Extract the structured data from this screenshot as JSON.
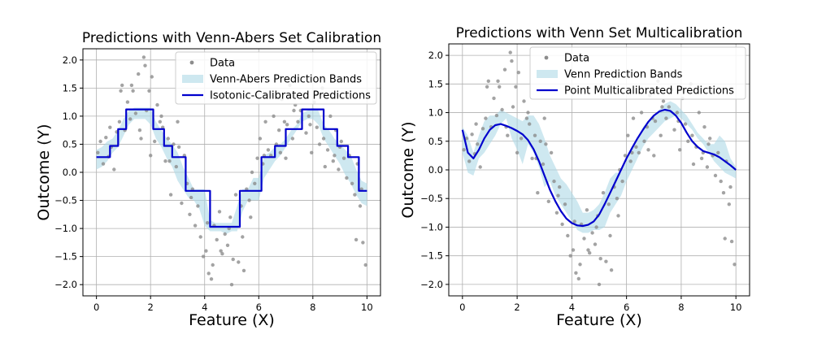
{
  "figure": {
    "background": "#ffffff"
  },
  "colors": {
    "data": "#8c8c8c",
    "band": "#add8e6",
    "line": "#0000cd",
    "grid": "#b0b0b0"
  },
  "chart_data": [
    {
      "type": "line",
      "title": "Predictions with Venn-Abers Set Calibration",
      "xlabel": "Feature (X)",
      "ylabel": "Outcome (Y)",
      "xlim": [
        -0.5,
        10.5
      ],
      "ylim": [
        -2.2,
        2.2
      ],
      "xticks": [
        0,
        2,
        4,
        6,
        8,
        10
      ],
      "yticks": [
        -2.0,
        -1.5,
        -1.0,
        -0.5,
        0.0,
        0.5,
        1.0,
        1.5,
        2.0
      ],
      "ytick_labels": [
        "−2.0",
        "−1.5",
        "−1.0",
        "−0.5",
        "0.0",
        "0.5",
        "1.0",
        "1.5",
        "2.0"
      ],
      "grid": true,
      "legend_position": "top-right",
      "legend": [
        "Data",
        "Venn-Abers Prediction Bands",
        "Isotonic-Calibrated Predictions"
      ],
      "scatter": {
        "name": "Data",
        "x": [
          0.05,
          0.15,
          0.25,
          0.35,
          0.45,
          0.55,
          0.65,
          0.75,
          0.85,
          0.95,
          1.05,
          1.15,
          1.25,
          1.35,
          1.45,
          1.55,
          1.65,
          1.75,
          1.85,
          1.95,
          2.05,
          2.15,
          2.25,
          2.35,
          2.45,
          2.55,
          2.65,
          2.75,
          2.85,
          2.95,
          3.05,
          3.15,
          3.25,
          3.35,
          3.45,
          3.55,
          3.65,
          3.75,
          3.85,
          3.95,
          4.05,
          4.15,
          4.25,
          4.35,
          4.45,
          4.55,
          4.65,
          4.75,
          4.85,
          4.95,
          5.05,
          5.15,
          5.25,
          5.35,
          5.45,
          5.55,
          5.65,
          5.75,
          5.85,
          5.95,
          6.05,
          6.15,
          6.25,
          6.35,
          6.45,
          6.55,
          6.65,
          6.75,
          6.85,
          6.95,
          7.05,
          7.15,
          7.25,
          7.35,
          7.45,
          7.55,
          7.65,
          7.75,
          7.85,
          7.95,
          8.05,
          8.15,
          8.25,
          8.35,
          8.45,
          8.55,
          8.65,
          8.75,
          8.85,
          8.95,
          9.05,
          9.15,
          9.25,
          9.35,
          9.45,
          9.55,
          9.65,
          9.75,
          9.85,
          9.95,
          0.5,
          1.3,
          1.8,
          2.0,
          2.4,
          3.0,
          3.5,
          4.1,
          4.6,
          5.0,
          5.4,
          6.2,
          6.8,
          7.3,
          7.9,
          8.4,
          9.0,
          9.6,
          0.9,
          1.6,
          2.7,
          4.3,
          4.9,
          5.7,
          7.0,
          8.8,
          9.8
        ],
        "y": [
          0.35,
          0.55,
          0.15,
          0.62,
          0.28,
          0.45,
          0.05,
          0.72,
          0.9,
          1.55,
          0.75,
          1.25,
          0.95,
          1.45,
          1.05,
          1.75,
          0.6,
          2.05,
          1.1,
          1.45,
          1.7,
          0.55,
          1.2,
          0.9,
          0.8,
          0.2,
          0.6,
          -0.4,
          0.5,
          0.1,
          0.45,
          -0.55,
          0.3,
          -0.2,
          -0.75,
          -0.3,
          -0.95,
          -0.6,
          -1.15,
          -1.5,
          -1.4,
          -1.8,
          -1.9,
          -0.95,
          -1.2,
          -0.7,
          -1.45,
          -1.1,
          -1.3,
          -0.8,
          -1.55,
          -0.4,
          -1.6,
          -0.6,
          -1.75,
          -0.3,
          -0.5,
          0.0,
          -0.2,
          0.25,
          0.6,
          0.15,
          0.9,
          0.4,
          0.3,
          1.0,
          0.5,
          0.75,
          1.3,
          0.9,
          0.85,
          1.55,
          0.6,
          1.2,
          0.9,
          1.1,
          1.4,
          0.7,
          1.0,
          0.35,
          1.25,
          0.8,
          0.5,
          1.5,
          0.1,
          0.4,
          1.0,
          0.2,
          0.75,
          0.05,
          0.55,
          0.25,
          -0.1,
          0.3,
          -0.2,
          -0.4,
          0.15,
          -0.6,
          -1.25,
          -1.65,
          0.8,
          1.55,
          1.9,
          0.3,
          1.0,
          0.9,
          -0.45,
          -0.9,
          -1.4,
          -2.0,
          -1.15,
          0.3,
          0.35,
          1.1,
          0.85,
          0.6,
          0.45,
          -1.2,
          1.45,
          0.75,
          0.2,
          -1.65,
          -1.0,
          -0.8,
          0.25,
          0.3,
          -0.3
        ]
      },
      "band": {
        "name": "Venn-Abers Prediction Bands",
        "x": [
          0,
          0.2,
          0.4,
          0.6,
          0.8,
          1.0,
          1.2,
          1.4,
          1.6,
          1.8,
          2.0,
          2.2,
          2.4,
          2.6,
          2.8,
          3.0,
          3.2,
          3.4,
          3.6,
          3.8,
          4.0,
          4.2,
          4.4,
          4.6,
          4.8,
          5.0,
          5.2,
          5.4,
          5.6,
          5.8,
          6.0,
          6.2,
          6.4,
          6.6,
          6.8,
          7.0,
          7.2,
          7.4,
          7.6,
          7.8,
          8.0,
          8.2,
          8.4,
          8.6,
          8.8,
          9.0,
          9.2,
          9.4,
          9.6,
          9.8,
          10.0
        ],
        "lower": [
          0.05,
          0.1,
          0.2,
          0.35,
          0.45,
          0.65,
          0.85,
          0.95,
          0.95,
          0.95,
          0.85,
          0.6,
          0.45,
          0.25,
          0.1,
          -0.15,
          -0.3,
          -0.45,
          -0.5,
          -0.65,
          -0.95,
          -1.05,
          -1.05,
          -1.05,
          -1.1,
          -1.05,
          -1.05,
          -0.7,
          -0.5,
          -0.5,
          -0.5,
          -0.1,
          0.05,
          0.2,
          0.3,
          0.45,
          0.6,
          0.75,
          0.9,
          0.95,
          0.95,
          0.85,
          0.6,
          0.45,
          0.3,
          0.15,
          -0.05,
          -0.2,
          -0.4,
          -0.55,
          -0.6
        ],
        "upper": [
          0.4,
          0.45,
          0.55,
          0.6,
          0.75,
          0.95,
          1.1,
          1.15,
          1.15,
          1.15,
          1.15,
          0.9,
          0.75,
          0.6,
          0.5,
          0.35,
          0.1,
          -0.1,
          -0.3,
          -0.3,
          -0.3,
          -0.85,
          -0.9,
          -0.9,
          -0.9,
          -0.9,
          -0.6,
          -0.3,
          -0.3,
          -0.1,
          -0.1,
          0.3,
          0.35,
          0.45,
          0.5,
          0.6,
          0.75,
          0.85,
          1.05,
          1.1,
          1.15,
          1.1,
          0.85,
          0.75,
          0.6,
          0.5,
          0.4,
          0.3,
          0.05,
          -0.15,
          -0.2
        ]
      },
      "line": {
        "name": "Isotonic-Calibrated Predictions",
        "step_x": [
          0,
          0.5,
          0.8,
          1.1,
          2.1,
          2.5,
          2.8,
          3.3,
          4.2,
          5.3,
          6.1,
          6.6,
          7.0,
          7.6,
          8.4,
          8.9,
          9.3,
          9.7,
          10.0
        ],
        "step_y": [
          0.27,
          0.47,
          0.77,
          1.12,
          0.77,
          0.47,
          0.27,
          -0.33,
          -0.97,
          -0.33,
          0.27,
          0.47,
          0.77,
          1.12,
          0.77,
          0.47,
          0.27,
          -0.33
        ]
      }
    },
    {
      "type": "line",
      "title": "Predictions with Venn Set Multicalibration",
      "xlabel": "Feature (X)",
      "ylabel": "Outcome (Y)",
      "xlim": [
        -0.5,
        10.5
      ],
      "ylim": [
        -2.2,
        2.2
      ],
      "xticks": [
        0,
        2,
        4,
        6,
        8,
        10
      ],
      "yticks": [
        -2.0,
        -1.5,
        -1.0,
        -0.5,
        0.0,
        0.5,
        1.0,
        1.5,
        2.0
      ],
      "ytick_labels": [
        "−2.0",
        "−1.5",
        "−1.0",
        "−0.5",
        "0.0",
        "0.5",
        "1.0",
        "1.5",
        "2.0"
      ],
      "grid": true,
      "legend_position": "top-right",
      "legend": [
        "Data",
        "Venn Prediction Bands",
        "Point Multicalibrated Predictions"
      ],
      "scatter": {
        "name": "Data",
        "x": [
          0.05,
          0.15,
          0.25,
          0.35,
          0.45,
          0.55,
          0.65,
          0.75,
          0.85,
          0.95,
          1.05,
          1.15,
          1.25,
          1.35,
          1.45,
          1.55,
          1.65,
          1.75,
          1.85,
          1.95,
          2.05,
          2.15,
          2.25,
          2.35,
          2.45,
          2.55,
          2.65,
          2.75,
          2.85,
          2.95,
          3.05,
          3.15,
          3.25,
          3.35,
          3.45,
          3.55,
          3.65,
          3.75,
          3.85,
          3.95,
          4.05,
          4.15,
          4.25,
          4.35,
          4.45,
          4.55,
          4.65,
          4.75,
          4.85,
          4.95,
          5.05,
          5.15,
          5.25,
          5.35,
          5.45,
          5.55,
          5.65,
          5.75,
          5.85,
          5.95,
          6.05,
          6.15,
          6.25,
          6.35,
          6.45,
          6.55,
          6.65,
          6.75,
          6.85,
          6.95,
          7.05,
          7.15,
          7.25,
          7.35,
          7.45,
          7.55,
          7.65,
          7.75,
          7.85,
          7.95,
          8.05,
          8.15,
          8.25,
          8.35,
          8.45,
          8.55,
          8.65,
          8.75,
          8.85,
          8.95,
          9.05,
          9.15,
          9.25,
          9.35,
          9.45,
          9.55,
          9.65,
          9.75,
          9.85,
          9.95,
          0.5,
          1.3,
          1.8,
          2.0,
          2.4,
          3.0,
          3.5,
          4.1,
          4.6,
          5.0,
          5.4,
          6.2,
          6.8,
          7.3,
          7.9,
          8.4,
          9.0,
          9.6,
          0.9,
          1.6,
          2.7,
          4.3,
          4.9,
          5.7,
          7.0,
          8.8,
          9.8
        ],
        "y": [
          0.35,
          0.55,
          0.15,
          0.62,
          0.28,
          0.45,
          0.05,
          0.72,
          0.9,
          1.55,
          0.75,
          1.25,
          0.95,
          1.45,
          1.05,
          1.75,
          0.6,
          2.05,
          1.1,
          1.45,
          1.7,
          0.55,
          1.2,
          0.9,
          0.8,
          0.2,
          0.6,
          -0.4,
          0.5,
          0.1,
          0.45,
          -0.55,
          0.3,
          -0.2,
          -0.75,
          -0.3,
          -0.95,
          -0.6,
          -1.15,
          -1.5,
          -1.4,
          -1.8,
          -1.9,
          -0.95,
          -1.2,
          -0.7,
          -1.45,
          -1.1,
          -1.3,
          -0.8,
          -1.55,
          -0.4,
          -1.6,
          -0.6,
          -1.75,
          -0.3,
          -0.5,
          0.0,
          -0.2,
          0.25,
          0.6,
          0.15,
          0.9,
          0.4,
          0.3,
          1.0,
          0.5,
          0.75,
          1.3,
          0.9,
          0.85,
          1.55,
          0.6,
          1.2,
          0.9,
          1.1,
          1.4,
          0.7,
          1.0,
          0.35,
          1.25,
          0.8,
          0.5,
          1.5,
          0.1,
          0.4,
          1.0,
          0.2,
          0.75,
          0.05,
          0.55,
          0.25,
          -0.1,
          0.3,
          -0.2,
          -0.4,
          0.15,
          -0.6,
          -1.25,
          -1.65,
          0.8,
          1.55,
          1.9,
          0.3,
          1.0,
          0.9,
          -0.45,
          -0.9,
          -1.4,
          -2.0,
          -1.15,
          0.3,
          0.35,
          1.1,
          0.85,
          0.6,
          0.45,
          -1.2,
          1.45,
          0.75,
          0.2,
          -1.65,
          -1.0,
          -0.8,
          0.25,
          0.3,
          -0.3
        ]
      },
      "band": {
        "name": "Venn Prediction Bands",
        "x": [
          0,
          0.2,
          0.4,
          0.6,
          0.8,
          1.0,
          1.2,
          1.4,
          1.6,
          1.8,
          2.0,
          2.2,
          2.4,
          2.6,
          2.8,
          3.0,
          3.2,
          3.4,
          3.6,
          3.8,
          4.0,
          4.2,
          4.4,
          4.6,
          4.8,
          5.0,
          5.2,
          5.4,
          5.6,
          5.8,
          6.0,
          6.2,
          6.4,
          6.6,
          6.8,
          7.0,
          7.2,
          7.4,
          7.6,
          7.8,
          8.0,
          8.2,
          8.4,
          8.6,
          8.8,
          9.0,
          9.2,
          9.4,
          9.6,
          9.8,
          10.0
        ],
        "lower": [
          0.3,
          -0.05,
          -0.1,
          0.2,
          0.3,
          0.45,
          0.6,
          0.8,
          0.9,
          0.55,
          0.35,
          0.1,
          0.45,
          0.3,
          0.05,
          -0.3,
          -0.2,
          -0.45,
          -0.6,
          -0.75,
          -0.9,
          -1.05,
          -1.1,
          -1.1,
          -1.05,
          -1.05,
          -1.0,
          -0.75,
          -0.6,
          -0.45,
          -0.2,
          0.0,
          0.2,
          0.4,
          0.55,
          0.65,
          0.75,
          0.85,
          0.9,
          0.95,
          0.9,
          0.8,
          0.7,
          0.55,
          0.45,
          0.3,
          0.15,
          0.05,
          -0.05,
          -0.1,
          -0.15
        ],
        "upper": [
          0.75,
          0.6,
          0.3,
          0.6,
          0.85,
          0.95,
          0.95,
          1.05,
          1.0,
          0.95,
          0.9,
          0.85,
          0.95,
          0.95,
          0.8,
          0.55,
          0.25,
          0.05,
          -0.15,
          -0.25,
          -0.4,
          -0.55,
          -0.75,
          -0.75,
          -0.7,
          -0.6,
          -0.4,
          -0.15,
          -0.05,
          -0.05,
          0.15,
          0.35,
          0.5,
          0.75,
          0.85,
          0.95,
          1.05,
          1.15,
          1.2,
          1.15,
          1.05,
          0.95,
          0.8,
          0.65,
          0.55,
          0.45,
          0.45,
          0.6,
          0.5,
          0.2,
          0.05
        ]
      },
      "line": {
        "name": "Point Multicalibrated Predictions",
        "x": [
          0,
          0.2,
          0.4,
          0.6,
          0.8,
          1.0,
          1.2,
          1.4,
          1.6,
          1.8,
          2.0,
          2.2,
          2.4,
          2.6,
          2.8,
          3.0,
          3.2,
          3.4,
          3.6,
          3.8,
          4.0,
          4.2,
          4.4,
          4.6,
          4.8,
          5.0,
          5.2,
          5.4,
          5.6,
          5.8,
          6.0,
          6.2,
          6.4,
          6.6,
          6.8,
          7.0,
          7.2,
          7.4,
          7.6,
          7.8,
          8.0,
          8.2,
          8.4,
          8.6,
          8.8,
          9.0,
          9.2,
          9.4,
          9.6,
          9.8,
          10.0
        ],
        "y": [
          0.7,
          0.3,
          0.2,
          0.35,
          0.55,
          0.7,
          0.78,
          0.8,
          0.77,
          0.73,
          0.68,
          0.62,
          0.52,
          0.36,
          0.15,
          -0.1,
          -0.35,
          -0.55,
          -0.72,
          -0.85,
          -0.93,
          -0.97,
          -0.98,
          -0.96,
          -0.9,
          -0.78,
          -0.6,
          -0.4,
          -0.2,
          0.0,
          0.2,
          0.38,
          0.55,
          0.7,
          0.84,
          0.95,
          1.02,
          1.05,
          1.03,
          0.95,
          0.82,
          0.65,
          0.5,
          0.4,
          0.33,
          0.3,
          0.27,
          0.22,
          0.15,
          0.08,
          0.0
        ]
      }
    }
  ]
}
